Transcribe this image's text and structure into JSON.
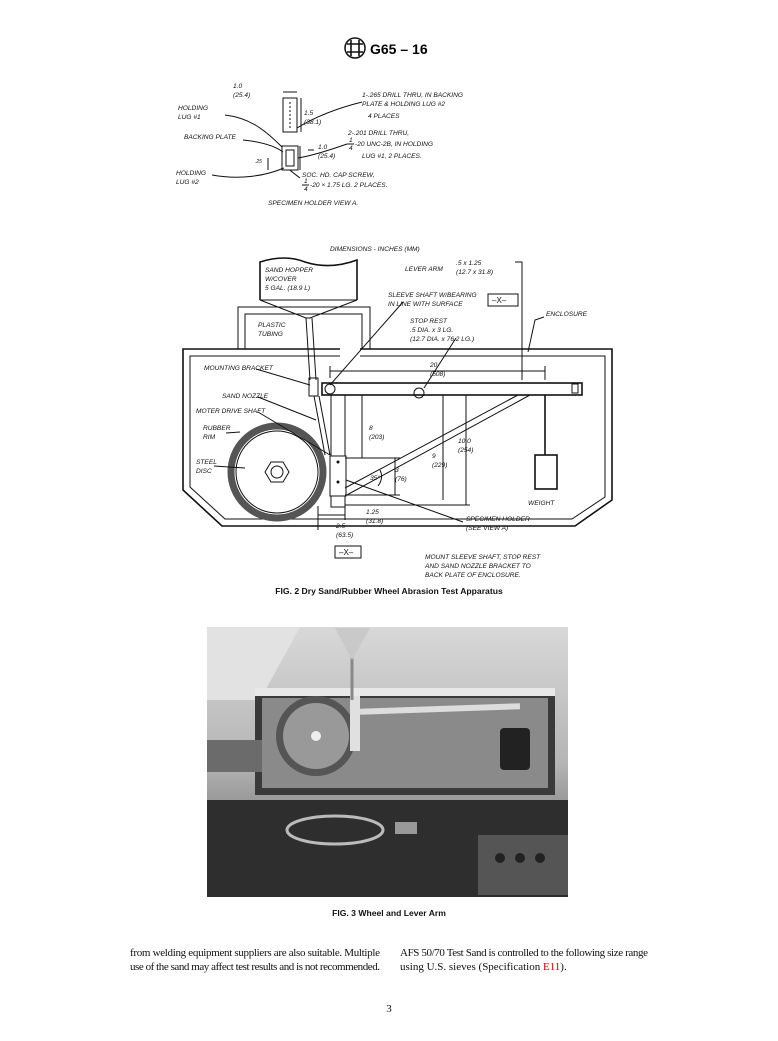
{
  "header": {
    "designation": "G65 – 16"
  },
  "view_a": {
    "dim_width_top": [
      "1.0",
      "(25.4)"
    ],
    "dim_height": [
      "1.5",
      "(38.1)"
    ],
    "holding_lug_1": [
      "HOLDING",
      "LUG #1"
    ],
    "backing_plate": [
      "BACKING PLATE"
    ],
    "dim_width_bottom": [
      "1.0",
      "(25.4)"
    ],
    "dim_thickness": [
      ".25"
    ],
    "holding_lug_2": [
      "HOLDING",
      "LUG #2"
    ],
    "note_drill_1": [
      "1-.265 DRILL THRU, IN BACKING",
      "PLATE & HOLDING LUG #2"
    ],
    "note_places_1": [
      "4 PLACES"
    ],
    "note_drill_2": [
      "2-.201 DRILL THRU,"
    ],
    "note_thread": {
      "numerator": "1",
      "denominator": "4",
      "text": "-20 UNC-2B, IN HOLDING"
    },
    "note_lug": [
      "LUG #1, 2 PLACES."
    ],
    "note_screw": [
      "SOC. HD. CAP SCREW,"
    ],
    "note_screw_size": {
      "numerator": "1",
      "denominator": "4",
      "text": "-20 × 1.75 LG. 2 PLACES."
    },
    "title": [
      "SPECIMEN HOLDER VIEW A."
    ]
  },
  "figure_2": {
    "dimensions_note": [
      "DIMENSIONS - INCHES (MM)"
    ],
    "sand_hopper": [
      "SAND HOPPER",
      "W/COVER",
      "5 GAL. (18.9 L)"
    ],
    "lever_arm": [
      "LEVER ARM"
    ],
    "lever_arm_size": [
      ".5 x 1.25",
      "(12.7 x 31.8)"
    ],
    "sleeve_shaft": [
      "SLEEVE SHAFT W/BEARING",
      "IN LINE WITH SURFACE"
    ],
    "section_mark_top": [
      "–X–"
    ],
    "enclosure": [
      "ENCLOSURE"
    ],
    "plastic_tubing": [
      "PLASTIC",
      "TUBING"
    ],
    "stop_rest": [
      "STOP REST",
      ".5 DIA. x 3 LG.",
      "(12.7 DIA. x 76.2 LG.)"
    ],
    "mounting_bracket": [
      "MOUNTING BRACKET"
    ],
    "dim_20": [
      "20",
      "(508)"
    ],
    "sand_nozzle": [
      "SAND NOZZLE"
    ],
    "drive_shaft": [
      "MOTER DRIVE SHAFT"
    ],
    "rubber_rim": [
      "RUBBER",
      "RIM"
    ],
    "steel_disc": [
      "STEEL",
      "DISC"
    ],
    "dim_8": [
      "8",
      "(203)"
    ],
    "dim_10": [
      "10.0",
      "(254)"
    ],
    "dim_9": [
      "9",
      "(229)"
    ],
    "dim_3": [
      "3",
      "(76)"
    ],
    "angle": [
      "35°"
    ],
    "weight": [
      "WEIGHT"
    ],
    "dim_1_25": [
      "1.25",
      "(31.8)"
    ],
    "specimen_holder": [
      "SPECIMEN HOLDER",
      "(SEE VIEW A)"
    ],
    "dim_2_5": [
      "2.5",
      "(63.5)"
    ],
    "section_mark_bottom": [
      "–X–"
    ],
    "mount_note": [
      "MOUNT SLEEVE SHAFT, STOP REST",
      "AND SAND NOZZLE BRACKET TO",
      "BACK PLATE OF ENCLOSURE."
    ],
    "caption": "FIG. 2 Dry Sand/Rubber Wheel Abrasion Test Apparatus"
  },
  "figure_3": {
    "caption": "FIG. 3 Wheel and Lever Arm"
  },
  "body": {
    "left_column": [
      "from welding equipment suppliers are also suitable. Multiple",
      "use of the sand may affect test results and is not recommended."
    ],
    "right_column": {
      "line_1": "AFS 50/70 Test Sand is controlled to the following size range",
      "line_2_start": "using U.S. sieves (Specification",
      "link": "E11",
      "line_2_end": ")."
    }
  },
  "footer": {
    "page_number": "3"
  }
}
